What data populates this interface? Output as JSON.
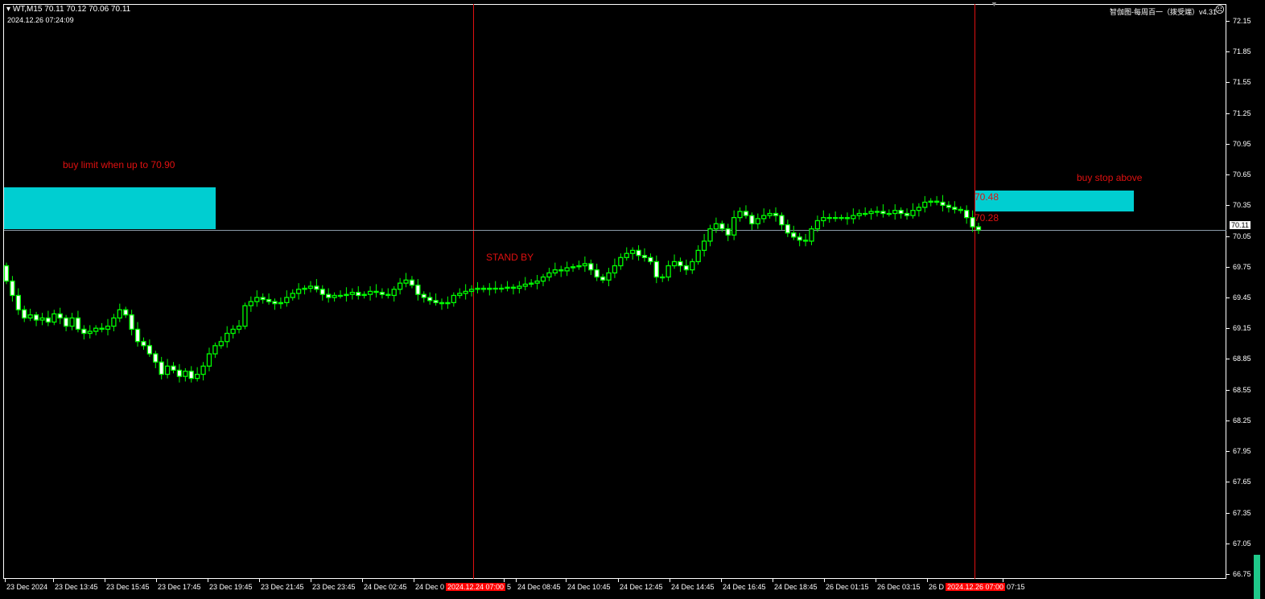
{
  "header": {
    "symbol_line": "WT,M15  70.11 70.12 70.06 70.11",
    "timestamp": "2024.12.26 07:24:09",
    "indicator_label": "智伽图-每周百一（拨受端）v4.31",
    "indicator_icon": "sad-face-icon"
  },
  "annotations": {
    "buy_limit": "buy limit when up to 70.90",
    "buy_stop": "buy stop above",
    "stand_by": "STAND BY",
    "level_high": "70.48",
    "level_low": "70.28",
    "current_price": "70.11"
  },
  "colors": {
    "bull_outline": "#00ff00",
    "bear_fill": "#ffffff",
    "box": "#00ced1",
    "annotation": "#e01010",
    "background": "#000000"
  },
  "chart_data": {
    "type": "candlestick",
    "symbol": "WT",
    "timeframe": "M15",
    "ylim": [
      66.75,
      72.15
    ],
    "y_ticks": [
      "72.15",
      "71.85",
      "71.55",
      "71.25",
      "70.95",
      "70.65",
      "70.35",
      "70.05",
      "69.75",
      "69.45",
      "69.15",
      "68.85",
      "68.55",
      "68.25",
      "67.95",
      "67.65",
      "67.35",
      "67.05",
      "66.75"
    ],
    "x_ticks": [
      "23 Dec 2024",
      "23 Dec 13:45",
      "23 Dec 15:45",
      "23 Dec 17:45",
      "23 Dec 19:45",
      "23 Dec 21:45",
      "23 Dec 23:45",
      "24 Dec 02:45",
      "24 Dec 0",
      "5",
      "24 Dec 08:45",
      "24 Dec 10:45",
      "24 Dec 12:45",
      "24 Dec 14:45",
      "24 Dec 16:45",
      "24 Dec 18:45",
      "26 Dec 01:15",
      "26 Dec 03:15",
      "26 D",
      "07:15"
    ],
    "vline_labels": [
      "2024.12.24 07:00",
      "2024.12.26 07:00"
    ],
    "current_price": 70.11,
    "zones": [
      {
        "from": 70.12,
        "to": 70.52
      },
      {
        "from": 70.29,
        "to": 70.49
      }
    ],
    "first_open": 69.76,
    "closes": [
      69.61,
      69.47,
      69.33,
      69.25,
      69.28,
      69.23,
      69.25,
      69.21,
      69.29,
      69.25,
      69.17,
      69.25,
      69.14,
      69.1,
      69.12,
      69.15,
      69.14,
      69.17,
      69.25,
      69.33,
      69.28,
      69.14,
      69.02,
      68.98,
      68.9,
      68.82,
      68.7,
      68.78,
      68.74,
      68.68,
      68.73,
      68.66,
      68.7,
      68.78,
      68.9,
      68.98,
      69.02,
      69.1,
      69.14,
      69.17,
      69.37,
      69.41,
      69.45,
      69.43,
      69.41,
      69.39,
      69.4,
      69.45,
      69.49,
      69.53,
      69.54,
      69.56,
      69.53,
      69.48,
      69.45,
      69.47,
      69.47,
      69.48,
      69.5,
      69.47,
      69.48,
      69.51,
      69.5,
      69.48,
      69.47,
      69.53,
      69.59,
      69.62,
      69.57,
      69.48,
      69.45,
      69.42,
      69.4,
      69.39,
      69.4,
      69.47,
      69.49,
      69.51,
      69.53,
      69.54,
      69.53,
      69.54,
      69.54,
      69.54,
      69.55,
      69.54,
      69.56,
      69.58,
      69.59,
      69.61,
      69.65,
      69.69,
      69.72,
      69.71,
      69.74,
      69.75,
      69.76,
      69.78,
      69.72,
      69.65,
      69.62,
      69.69,
      69.76,
      69.84,
      69.88,
      69.91,
      69.86,
      69.84,
      69.8,
      69.65,
      69.65,
      69.76,
      69.8,
      69.76,
      69.72,
      69.8,
      69.91,
      70.0,
      70.12,
      70.17,
      70.12,
      70.06,
      70.23,
      70.29,
      70.25,
      70.17,
      70.22,
      70.25,
      70.27,
      70.25,
      70.16,
      70.08,
      70.04,
      70.01,
      70.0,
      70.12,
      70.2,
      70.23,
      70.23,
      70.23,
      70.23,
      70.22,
      70.25,
      70.27,
      70.27,
      70.29,
      70.29,
      70.27,
      70.27,
      70.3,
      70.27,
      70.25,
      70.3,
      70.33,
      70.38,
      70.39,
      70.38,
      70.35,
      70.33,
      70.31,
      70.3,
      70.23,
      70.14,
      70.11
    ]
  }
}
